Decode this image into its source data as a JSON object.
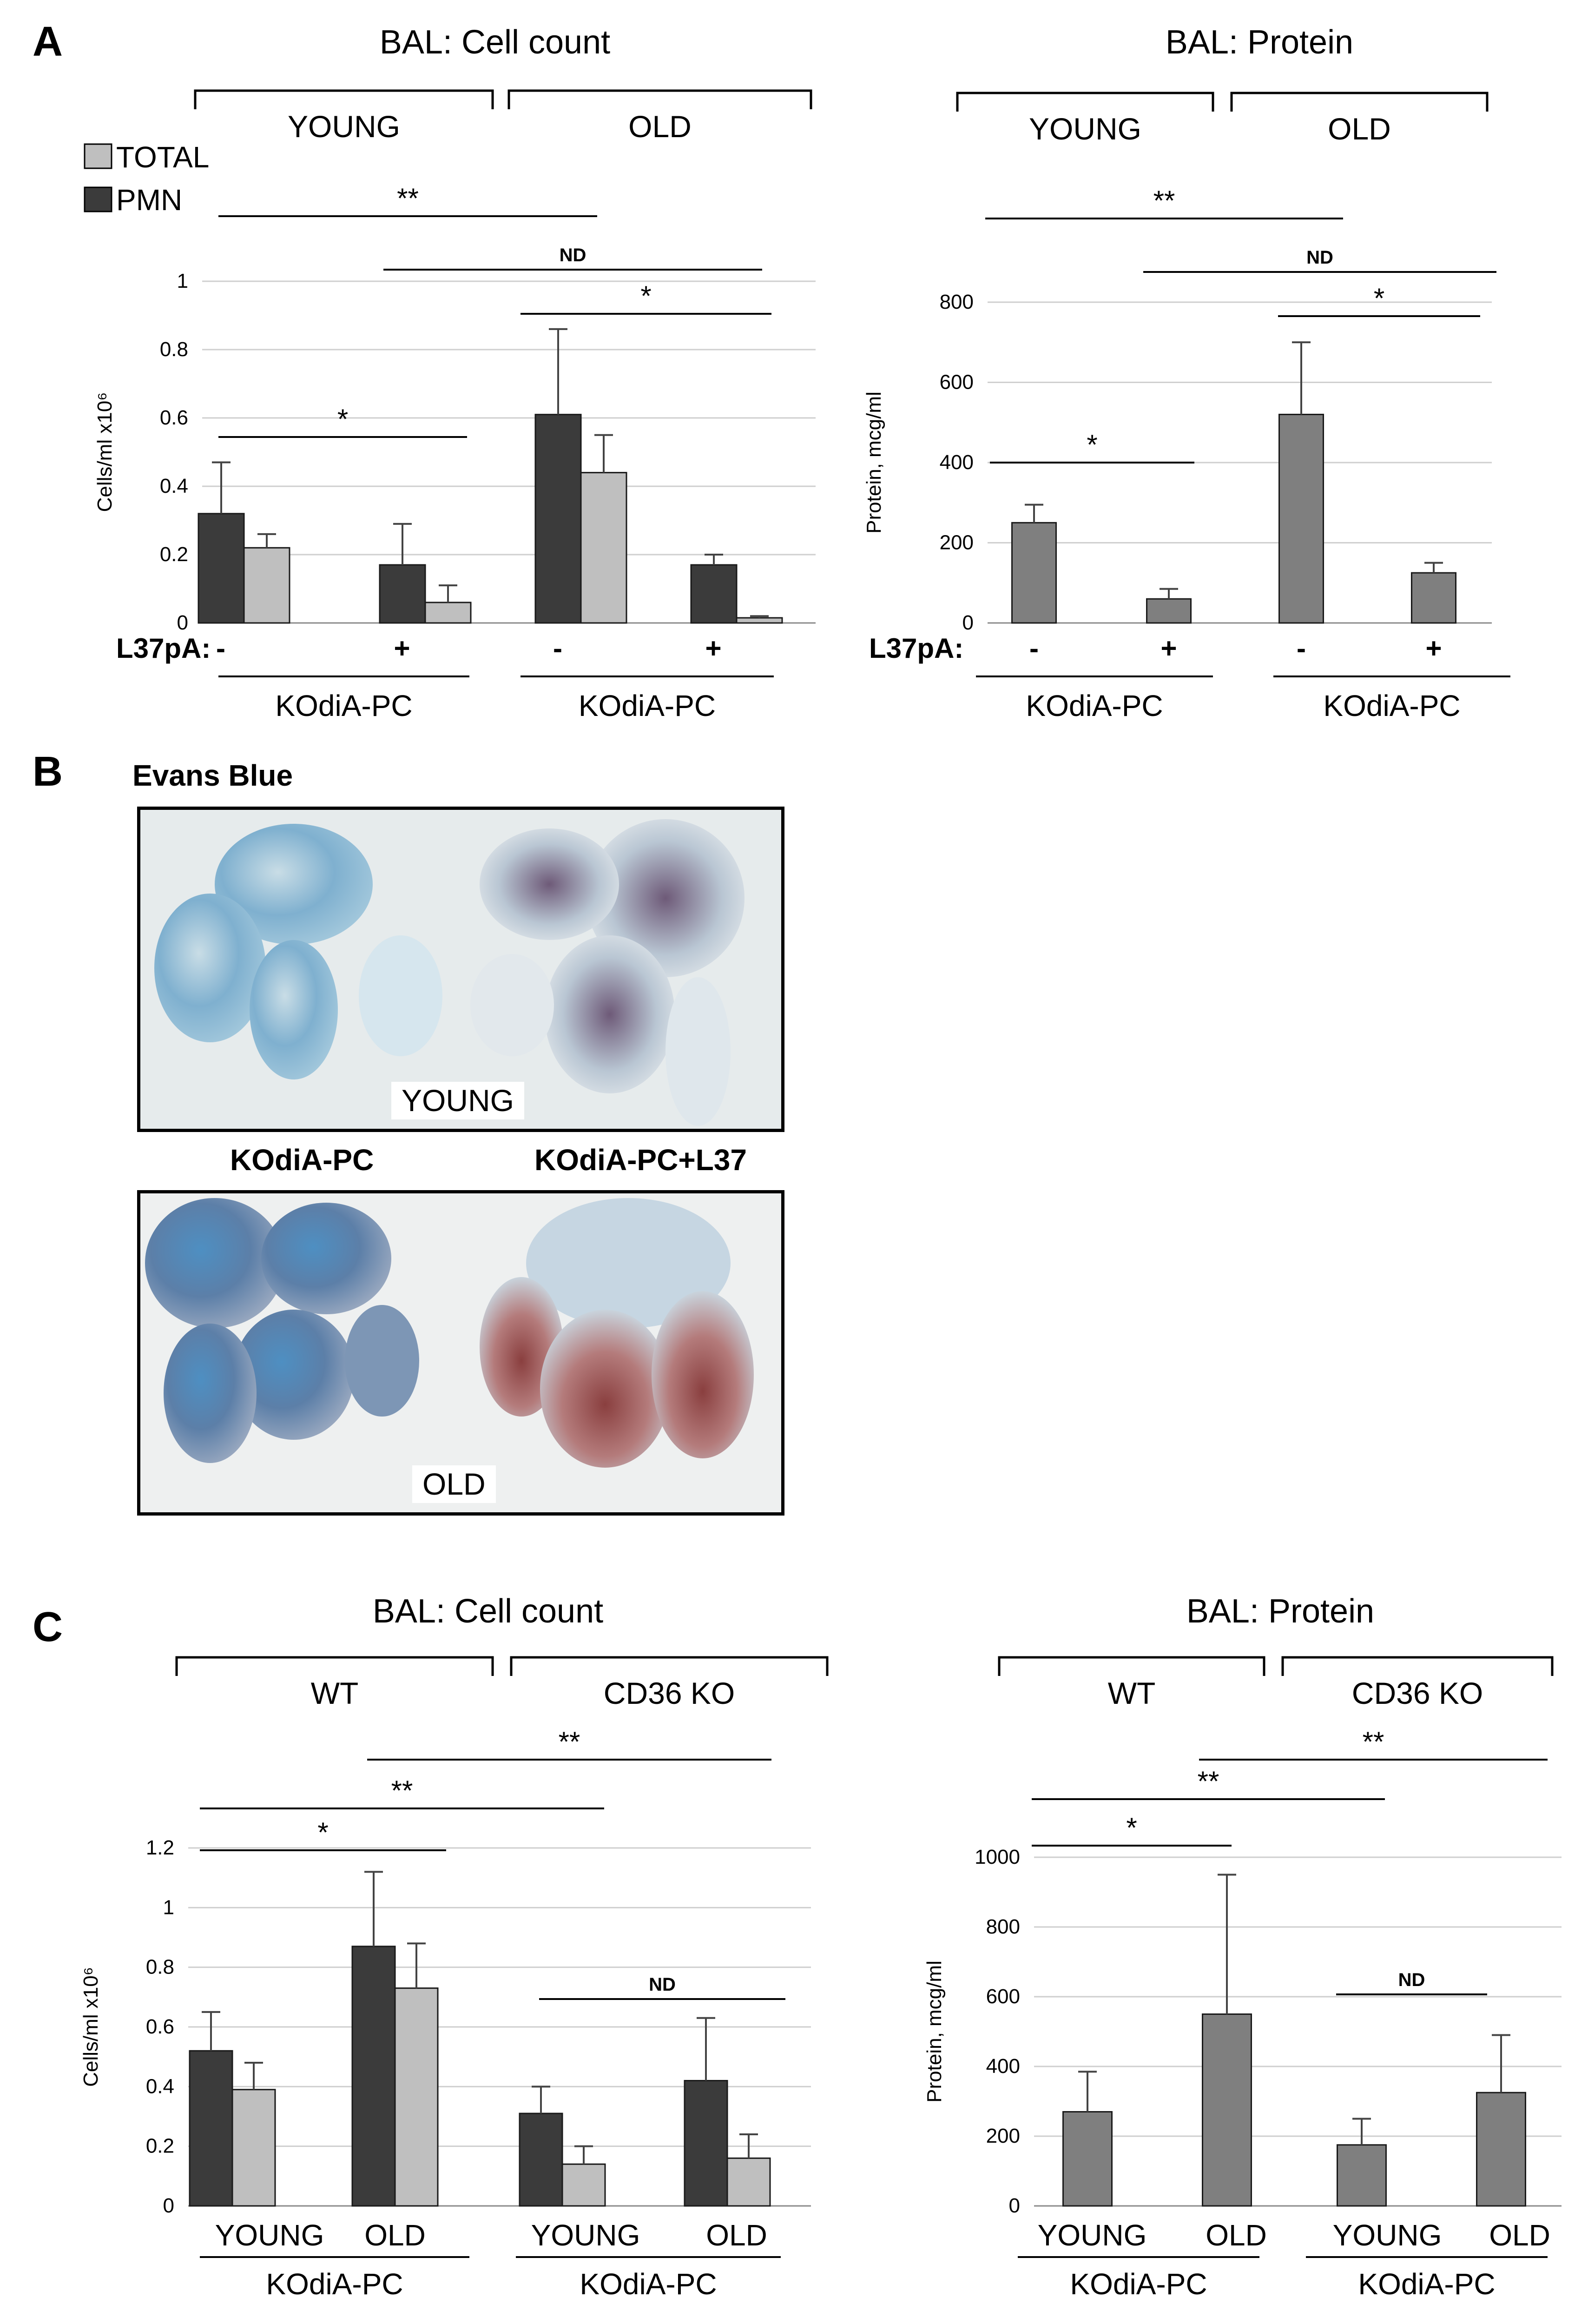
{
  "panel_a_label": "A",
  "panel_b_label": "B",
  "panel_c_label": "C",
  "legend": {
    "total": "TOTAL",
    "pmn": "PMN"
  },
  "colors": {
    "pmn": "#3b3b3b",
    "total": "#bfbfbf",
    "protein": "#7f7f7f",
    "grid": "#cfcfcf"
  },
  "chart_data": [
    {
      "id": "a-cell",
      "type": "bar",
      "title": "BAL: Cell count",
      "ylabel": "Cells/ml x10⁶",
      "ylim": [
        0,
        1
      ],
      "yticks": [
        "0",
        "0.2",
        "0.4",
        "0.6",
        "0.8",
        "1"
      ],
      "groups": [
        {
          "pmn": 0.32,
          "pmn_err": 0.15,
          "total": 0.22,
          "total_err": 0.04
        },
        {
          "pmn": 0.17,
          "pmn_err": 0.12,
          "total": 0.06,
          "total_err": 0.05
        },
        {
          "pmn": 0.61,
          "pmn_err": 0.25,
          "total": 0.44,
          "total_err": 0.11
        },
        {
          "pmn": 0.17,
          "pmn_err": 0.03,
          "total": 0.015,
          "total_err": 0.005
        }
      ],
      "top_brackets": [
        "YOUNG",
        "OLD"
      ],
      "row_prefix": "L37pA:",
      "row_labels": [
        "-",
        "+",
        "-",
        "+"
      ],
      "bottom_labels": [
        "KOdiA-PC",
        "KOdiA-PC"
      ],
      "significance": [
        "**",
        "ND",
        "*",
        "*"
      ]
    },
    {
      "id": "a-protein",
      "type": "bar",
      "title": "BAL: Protein",
      "ylabel": "Protein, mcg/ml",
      "ylim": [
        0,
        800
      ],
      "yticks": [
        "0",
        "200",
        "400",
        "600",
        "800"
      ],
      "groups": [
        {
          "value": 250,
          "err": 45
        },
        {
          "value": 60,
          "err": 25
        },
        {
          "value": 520,
          "err": 180
        },
        {
          "value": 125,
          "err": 25
        }
      ],
      "top_brackets": [
        "YOUNG",
        "OLD"
      ],
      "row_prefix": "L37pA:",
      "row_labels": [
        "-",
        "+",
        "-",
        "+"
      ],
      "bottom_labels": [
        "KOdiA-PC",
        "KOdiA-PC"
      ],
      "significance": [
        "**",
        "ND",
        "*",
        "*"
      ]
    },
    {
      "id": "c-cell",
      "type": "bar",
      "title": "BAL: Cell count",
      "ylabel": "Cells/ml x10⁶",
      "ylim": [
        0,
        1.2
      ],
      "yticks": [
        "0",
        "0.2",
        "0.4",
        "0.6",
        "0.8",
        "1",
        "1.2"
      ],
      "groups": [
        {
          "pmn": 0.52,
          "pmn_err": 0.13,
          "total": 0.39,
          "total_err": 0.09
        },
        {
          "pmn": 0.87,
          "pmn_err": 0.25,
          "total": 0.73,
          "total_err": 0.15
        },
        {
          "pmn": 0.31,
          "pmn_err": 0.09,
          "total": 0.14,
          "total_err": 0.06
        },
        {
          "pmn": 0.42,
          "pmn_err": 0.21,
          "total": 0.16,
          "total_err": 0.08
        }
      ],
      "top_brackets": [
        "WT",
        "CD36 KO"
      ],
      "age_labels": [
        "YOUNG",
        "OLD",
        "YOUNG",
        "OLD"
      ],
      "bottom_labels": [
        "KOdiA-PC",
        "KOdiA-PC"
      ],
      "significance": [
        "**",
        "**",
        "*",
        "ND"
      ]
    },
    {
      "id": "c-protein",
      "type": "bar",
      "title": "BAL: Protein",
      "ylabel": "Protein, mcg/ml",
      "ylim": [
        0,
        1000
      ],
      "yticks": [
        "0",
        "200",
        "400",
        "600",
        "800",
        "1000"
      ],
      "groups": [
        {
          "value": 270,
          "err": 115
        },
        {
          "value": 550,
          "err": 400
        },
        {
          "value": 175,
          "err": 75
        },
        {
          "value": 325,
          "err": 165
        }
      ],
      "top_brackets": [
        "WT",
        "CD36 KO"
      ],
      "age_labels": [
        "YOUNG",
        "OLD",
        "YOUNG",
        "OLD"
      ],
      "bottom_labels": [
        "KOdiA-PC",
        "KOdiA-PC"
      ],
      "significance": [
        "**",
        "**",
        "*",
        "ND"
      ]
    }
  ],
  "evans": {
    "title": "Evans Blue",
    "young_label": "YOUNG",
    "old_label": "OLD",
    "caption_left": "KOdiA-PC",
    "caption_right": "KOdiA-PC+L37"
  }
}
